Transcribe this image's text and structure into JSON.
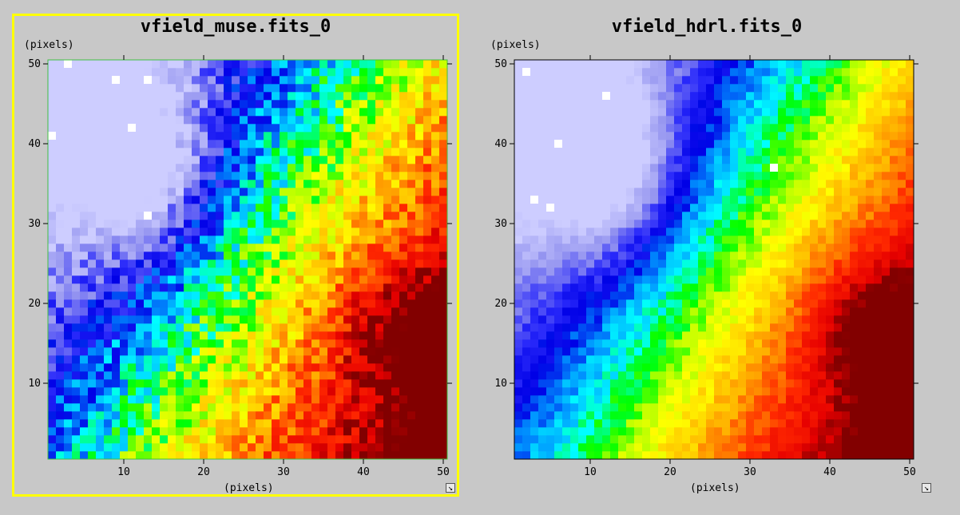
{
  "panels": [
    {
      "title": "vfield_muse.fits_0",
      "selected": true,
      "ylabel": "(pixels)",
      "xlabel": "(pixels)",
      "seed": 7,
      "noise": 0.09,
      "white_pixels": [
        [
          3,
          50
        ],
        [
          9,
          48
        ],
        [
          13,
          48
        ],
        [
          11,
          42
        ],
        [
          1,
          41
        ],
        [
          13,
          31
        ]
      ],
      "resize_icon": "resize-arrow-icon"
    },
    {
      "title": "vfield_hdrl.fits_0",
      "selected": false,
      "ylabel": "(pixels)",
      "xlabel": "(pixels)",
      "seed": 19,
      "noise": 0.04,
      "white_pixels": [
        [
          2,
          49
        ],
        [
          12,
          46
        ],
        [
          6,
          40
        ],
        [
          33,
          37
        ],
        [
          3,
          33
        ],
        [
          5,
          32
        ]
      ],
      "resize_icon": "resize-arrow-icon"
    }
  ],
  "chart_data": [
    {
      "type": "heatmap",
      "title": "vfield_muse.fits_0",
      "xlabel": "(pixels)",
      "ylabel": "(pixels)",
      "xlim": [
        0.5,
        50.5
      ],
      "ylim": [
        0.5,
        50.5
      ],
      "xticks": [
        10,
        20,
        30,
        40,
        50
      ],
      "yticks": [
        10,
        20,
        30,
        40,
        50
      ],
      "grid_size": [
        50,
        50
      ],
      "colormap": "rainbow (white-blue-cyan-green-yellow-orange-red-darkred)"
    },
    {
      "type": "heatmap",
      "title": "vfield_hdrl.fits_0",
      "xlabel": "(pixels)",
      "ylabel": "(pixels)",
      "xlim": [
        0.5,
        50.5
      ],
      "ylim": [
        0.5,
        50.5
      ],
      "xticks": [
        10,
        20,
        30,
        40,
        50
      ],
      "yticks": [
        10,
        20,
        30,
        40,
        50
      ],
      "grid_size": [
        50,
        50
      ],
      "colormap": "rainbow (white-blue-cyan-green-yellow-orange-red-darkred)"
    }
  ],
  "colors": {
    "background": "#c8c8c8",
    "selection": "#ffff00"
  }
}
